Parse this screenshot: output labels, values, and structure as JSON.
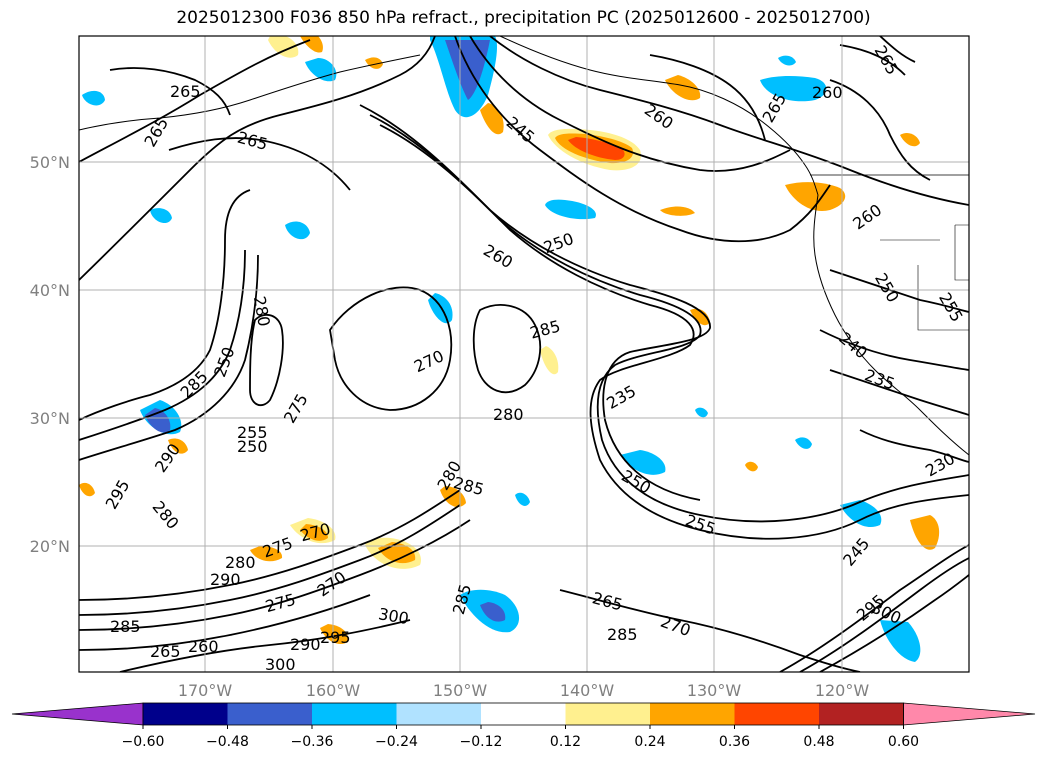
{
  "title": "2025012300 F036 850 hPa refract., precipitation PC (2025012600 - 2025012700)",
  "lat_labels": [
    "50°N",
    "40°N",
    "30°N",
    "20°N"
  ],
  "lon_labels": [
    "170°W",
    "160°W",
    "150°W",
    "140°W",
    "130°W",
    "120°W"
  ],
  "colorbar": {
    "colors": [
      "#9932cc",
      "#00008b",
      "#3a5fcd",
      "#00bfff",
      "#b0e2ff",
      "#ffffff",
      "#fff08f",
      "#ffa500",
      "#ff4500",
      "#b22222",
      "#ff88aa"
    ],
    "tick_labels": [
      "−0.60",
      "−0.48",
      "−0.36",
      "−0.24",
      "−0.12",
      "0.12",
      "0.24",
      "0.36",
      "0.48",
      "0.60"
    ]
  },
  "contour_labels": [
    "265",
    "265",
    "265",
    "245",
    "260",
    "265",
    "260",
    "265",
    "260",
    "250",
    "260",
    "250",
    "255",
    "280",
    "285",
    "270",
    "275",
    "285",
    "280",
    "290",
    "295",
    "280",
    "255",
    "250",
    "235",
    "250",
    "240",
    "235",
    "230",
    "250",
    "255",
    "285",
    "280",
    "270",
    "275",
    "280",
    "290",
    "275",
    "270",
    "285",
    "265",
    "260",
    "290",
    "295",
    "300",
    "300",
    "285",
    "265",
    "270",
    "285",
    "245",
    "300",
    "295"
  ]
}
